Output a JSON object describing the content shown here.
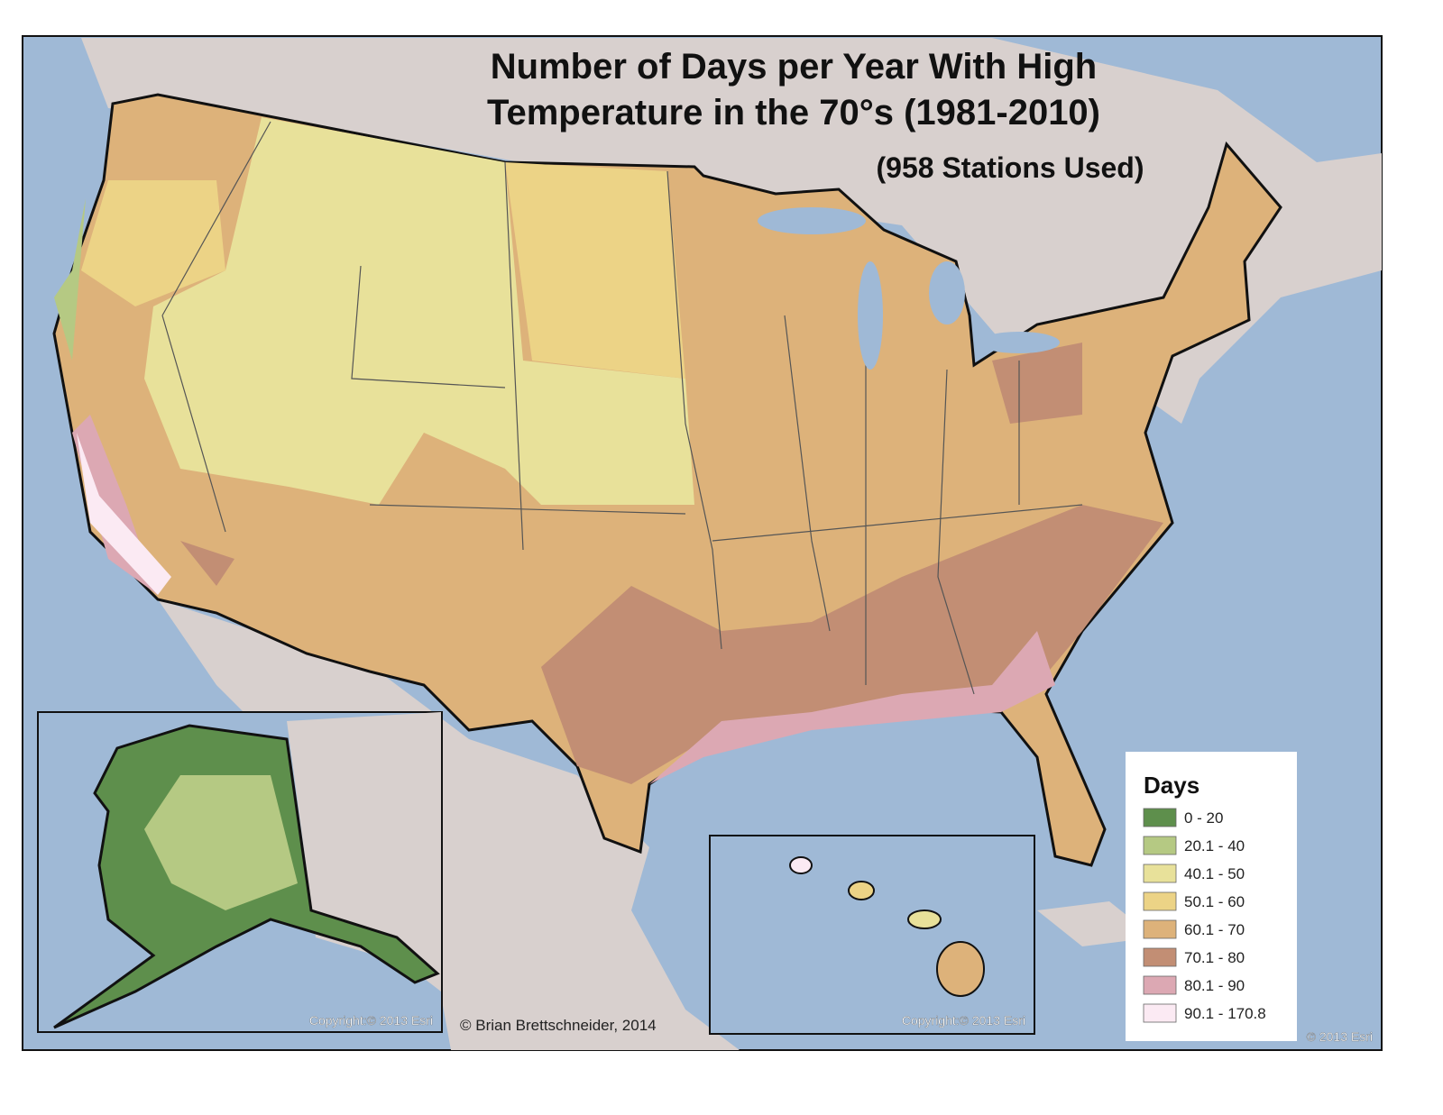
{
  "title": [
    "Number of Days per Year With High",
    "Temperature in the 70°s (1981-2010)"
  ],
  "subtitle": "(958 Stations Used)",
  "legend": {
    "title": "Days",
    "items": [
      {
        "label": "0 - 20",
        "color": "#5e8f4c"
      },
      {
        "label": "20.1 - 40",
        "color": "#b5c983"
      },
      {
        "label": "40.1 - 50",
        "color": "#e8e19a"
      },
      {
        "label": "50.1 - 60",
        "color": "#ecd386"
      },
      {
        "label": "60.1 - 70",
        "color": "#ddb27a"
      },
      {
        "label": "70.1 - 80",
        "color": "#c28e74"
      },
      {
        "label": "80.1 - 90",
        "color": "#dca8b3"
      },
      {
        "label": "90.1 - 170.8",
        "color": "#fbeaf3"
      }
    ]
  },
  "credit": "© Brian Brettschneider, 2014",
  "copyrights": [
    "Copyright:© 2013 Esri",
    "Copyright:© 2013 Esri",
    "© 2013 Esri"
  ]
}
